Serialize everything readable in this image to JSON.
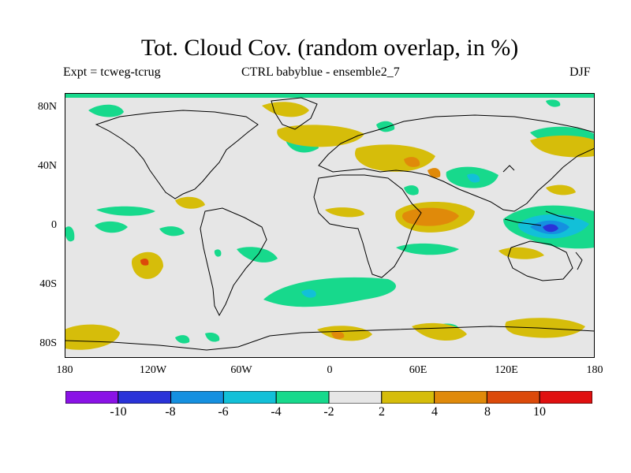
{
  "title": "Tot. Cloud Cov. (random overlap, in %)",
  "experiment": "Expt = tcweg-tcrug",
  "comparison": "CTRL babyblue - ensemble2_7",
  "season": "DJF",
  "y_ticks": [
    "80N",
    "40N",
    "0",
    "40S",
    "80S"
  ],
  "x_ticks": [
    "180",
    "120W",
    "60W",
    "0",
    "60E",
    "120E",
    "180"
  ],
  "colorbar": {
    "labels": [
      "-10",
      "-8",
      "-6",
      "-4",
      "-2",
      "2",
      "4",
      "8",
      "10"
    ],
    "colors": [
      "#8a12e6",
      "#2a33d8",
      "#1590e0",
      "#12c0d8",
      "#17d98c",
      "#e6e6e6",
      "#d6bd0a",
      "#e08a0a",
      "#dc4a0a",
      "#e01010"
    ]
  },
  "colors": {
    "background_field": "#e6e6e6",
    "map_frame": "#000000",
    "coastline": "#000000"
  }
}
